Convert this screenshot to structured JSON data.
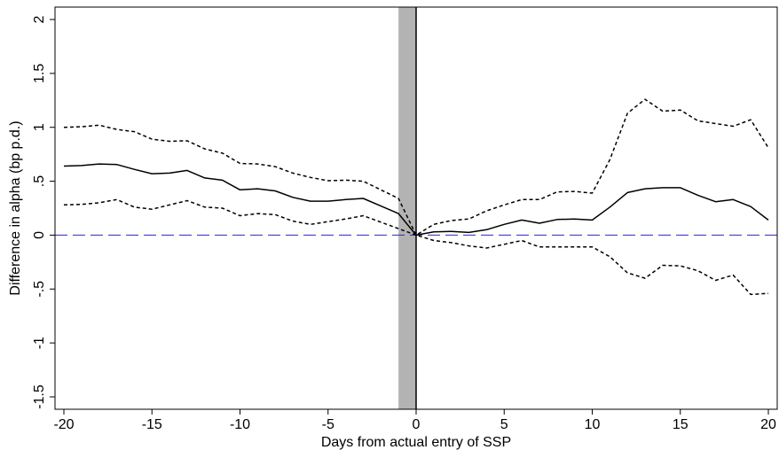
{
  "chart_data": {
    "type": "line",
    "title": "",
    "xlabel": "Days from actual entry of SSP",
    "ylabel": "Difference in alpha (bp p.d.)",
    "xlim": [
      -20,
      20
    ],
    "ylim": [
      -1.5,
      2
    ],
    "grid": false,
    "legend": "none",
    "x_ticks": [
      -20,
      -15,
      -10,
      -5,
      0,
      5,
      10,
      15,
      20
    ],
    "x_tick_labels": [
      "-20",
      "-15",
      "-10",
      "-5",
      "0",
      "5",
      "10",
      "15",
      "20"
    ],
    "y_ticks": [
      -1.5,
      -1,
      -0.5,
      0,
      0.5,
      1,
      1.5,
      2
    ],
    "y_tick_labels": [
      "-1.5",
      "-1",
      "-.5",
      "0",
      ".5",
      "1",
      "1.5",
      "2"
    ],
    "shaded_band": {
      "x": [
        -1,
        0
      ],
      "color": "#b3b3b3"
    },
    "zero_line": {
      "y": 0,
      "color": "#2a2ab8",
      "style": "dashed"
    },
    "vertical_line": {
      "x": 0,
      "color": "#000000"
    },
    "series": [
      {
        "role": "estimate",
        "style": "solid",
        "color": "#000000",
        "x": [
          -20,
          -19,
          -18,
          -17,
          -16,
          -15,
          -14,
          -13,
          -12,
          -11,
          -10,
          -9,
          -8,
          -7,
          -6,
          -5,
          -4,
          -3,
          -2,
          -1,
          0,
          1,
          2,
          3,
          4,
          5,
          6,
          7,
          8,
          9,
          10,
          11,
          12,
          13,
          14,
          15,
          16,
          17,
          18,
          19,
          20
        ],
        "values": [
          0.64,
          0.645,
          0.66,
          0.655,
          0.61,
          0.57,
          0.575,
          0.6,
          0.53,
          0.51,
          0.42,
          0.43,
          0.41,
          0.35,
          0.315,
          0.315,
          0.33,
          0.34,
          0.27,
          0.2,
          0.0,
          0.03,
          0.035,
          0.025,
          0.05,
          0.1,
          0.14,
          0.11,
          0.145,
          0.15,
          0.14,
          0.26,
          0.395,
          0.43,
          0.44,
          0.44,
          0.37,
          0.31,
          0.33,
          0.265,
          0.14
        ]
      },
      {
        "role": "upper-ci",
        "style": "dotted",
        "color": "#000000",
        "x": [
          -20,
          -19,
          -18,
          -17,
          -16,
          -15,
          -14,
          -13,
          -12,
          -11,
          -10,
          -9,
          -8,
          -7,
          -6,
          -5,
          -4,
          -3,
          -2,
          -1,
          0,
          1,
          2,
          3,
          4,
          5,
          6,
          7,
          8,
          9,
          10,
          11,
          12,
          13,
          14,
          15,
          16,
          17,
          18,
          19,
          20
        ],
        "values": [
          1.0,
          1.005,
          1.02,
          0.98,
          0.96,
          0.89,
          0.87,
          0.875,
          0.8,
          0.76,
          0.665,
          0.66,
          0.635,
          0.575,
          0.535,
          0.505,
          0.51,
          0.5,
          0.42,
          0.34,
          0.0,
          0.1,
          0.135,
          0.15,
          0.225,
          0.28,
          0.33,
          0.33,
          0.4,
          0.405,
          0.39,
          0.7,
          1.13,
          1.26,
          1.15,
          1.16,
          1.06,
          1.035,
          1.01,
          1.07,
          0.81
        ]
      },
      {
        "role": "lower-ci",
        "style": "dotted",
        "color": "#000000",
        "x": [
          -20,
          -19,
          -18,
          -17,
          -16,
          -15,
          -14,
          -13,
          -12,
          -11,
          -10,
          -9,
          -8,
          -7,
          -6,
          -5,
          -4,
          -3,
          -2,
          -1,
          0,
          1,
          2,
          3,
          4,
          5,
          6,
          7,
          8,
          9,
          10,
          11,
          12,
          13,
          14,
          15,
          16,
          17,
          18,
          19,
          20
        ],
        "values": [
          0.28,
          0.285,
          0.3,
          0.33,
          0.26,
          0.24,
          0.28,
          0.32,
          0.26,
          0.25,
          0.18,
          0.2,
          0.19,
          0.13,
          0.1,
          0.125,
          0.15,
          0.18,
          0.12,
          0.06,
          0.0,
          -0.05,
          -0.07,
          -0.1,
          -0.12,
          -0.085,
          -0.05,
          -0.11,
          -0.11,
          -0.11,
          -0.11,
          -0.2,
          -0.35,
          -0.4,
          -0.28,
          -0.285,
          -0.33,
          -0.42,
          -0.37,
          -0.55,
          -0.54
        ]
      }
    ]
  }
}
